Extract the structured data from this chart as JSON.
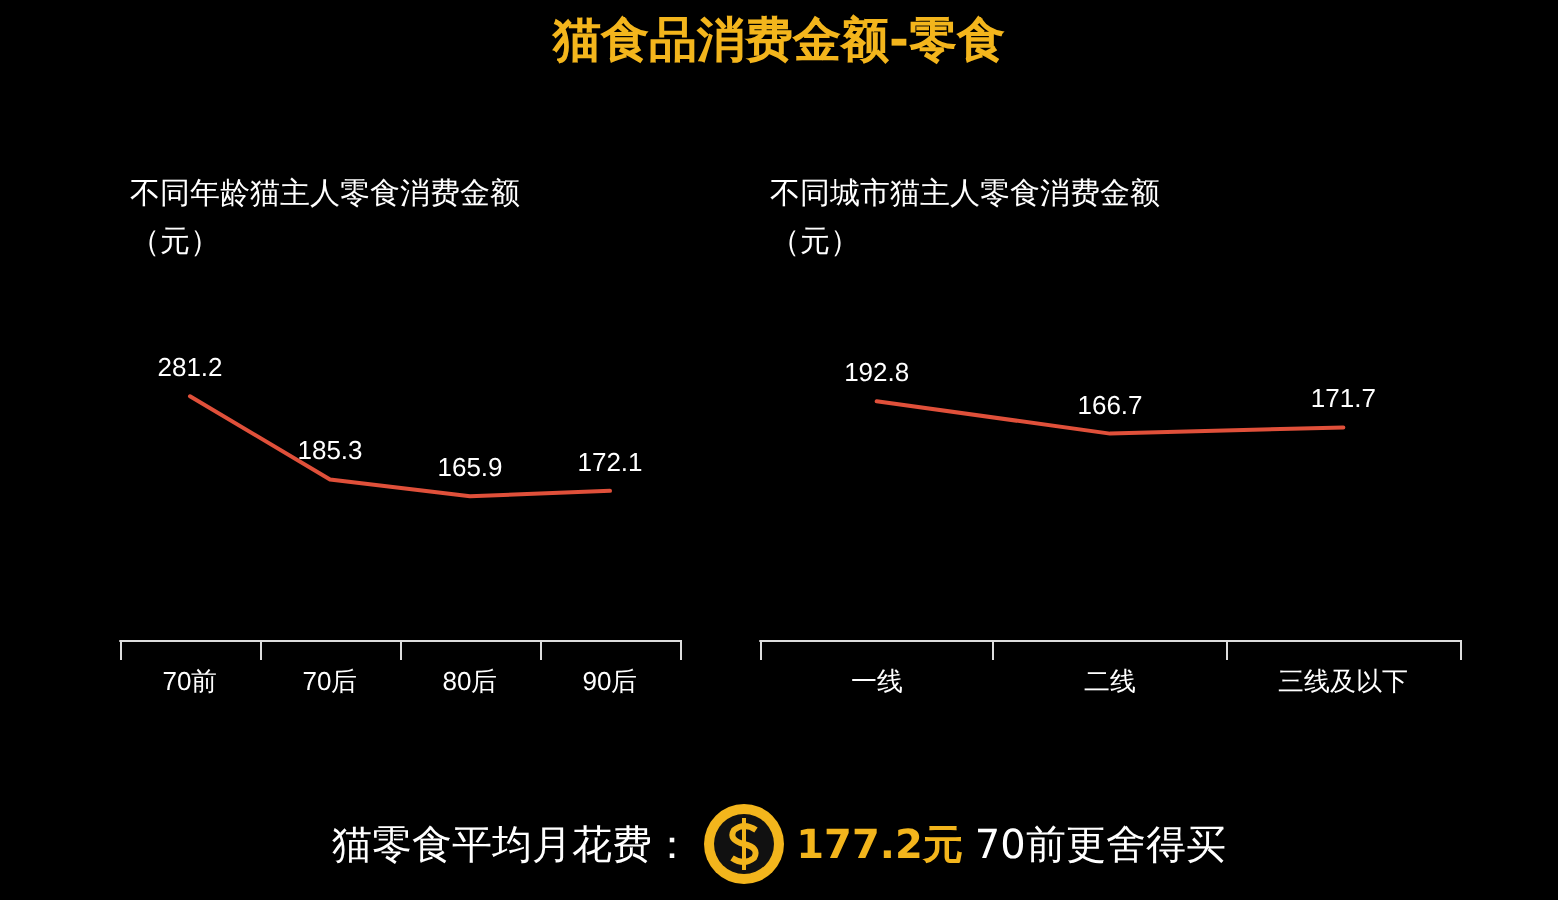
{
  "chart_data": [
    {
      "type": "line",
      "title": "猫食品消费金额-零食",
      "subtitle": "不同年龄猫主人零食消费金额（元）",
      "categories": [
        "70前",
        "70后",
        "80后",
        "90后"
      ],
      "series": [
        {
          "color": "#e0503a",
          "values": [
            281.2,
            185.3,
            165.9,
            172.1
          ]
        }
      ],
      "data_labels": true,
      "marker": "none",
      "line_style": "solid",
      "grid": false,
      "tick_labels": "x"
    },
    {
      "type": "line",
      "subtitle": "不同城市猫主人零食消费金额（元）",
      "categories": [
        "一线",
        "二线",
        "三线及以下"
      ],
      "series": [
        {
          "color": "#e0503a",
          "values": [
            192.8,
            166.7,
            171.7
          ]
        }
      ],
      "data_labels": true,
      "marker": "none",
      "line_style": "solid",
      "grid": false,
      "tick_labels": "x",
      "annotations": [
        "猫零食平均月花费：",
        "177.2元",
        "70前更舍得买"
      ]
    }
  ]
}
